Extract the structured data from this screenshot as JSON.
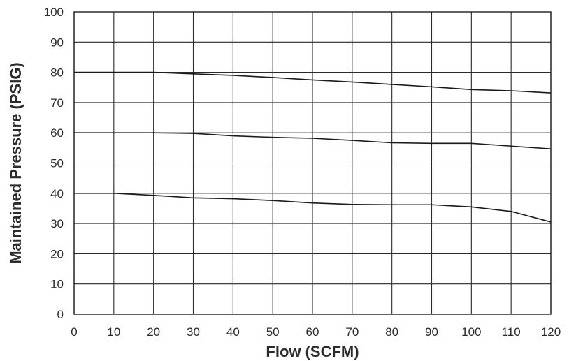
{
  "chart_data": {
    "type": "line",
    "title": "",
    "xlabel": "Flow (SCFM)",
    "ylabel": "Maintained Pressure (PSIG)",
    "xlim": [
      0,
      120
    ],
    "ylim": [
      0,
      100
    ],
    "x_ticks": [
      "0",
      "10",
      "20",
      "30",
      "40",
      "50",
      "60",
      "70",
      "80",
      "90",
      "100",
      "110",
      "120"
    ],
    "y_ticks": [
      "0",
      "10",
      "20",
      "30",
      "40",
      "50",
      "60",
      "70",
      "80",
      "90",
      "100"
    ],
    "grid": true,
    "line_color": "#1a1a1a",
    "x": [
      0,
      10,
      20,
      30,
      40,
      50,
      60,
      70,
      80,
      90,
      100,
      110,
      120
    ],
    "series": [
      {
        "values": [
          80,
          80,
          80,
          79.5,
          79,
          78.3,
          77.5,
          76.8,
          76,
          75.2,
          74.3,
          73.9,
          73.2
        ]
      },
      {
        "values": [
          60,
          60,
          60,
          59.8,
          59,
          58.5,
          58.2,
          57.5,
          56.7,
          56.5,
          56.5,
          55.6,
          54.7
        ]
      },
      {
        "values": [
          40,
          40,
          39.3,
          38.5,
          38.2,
          37.6,
          36.8,
          36.3,
          36.2,
          36.2,
          35.5,
          34,
          30.5
        ]
      }
    ]
  }
}
